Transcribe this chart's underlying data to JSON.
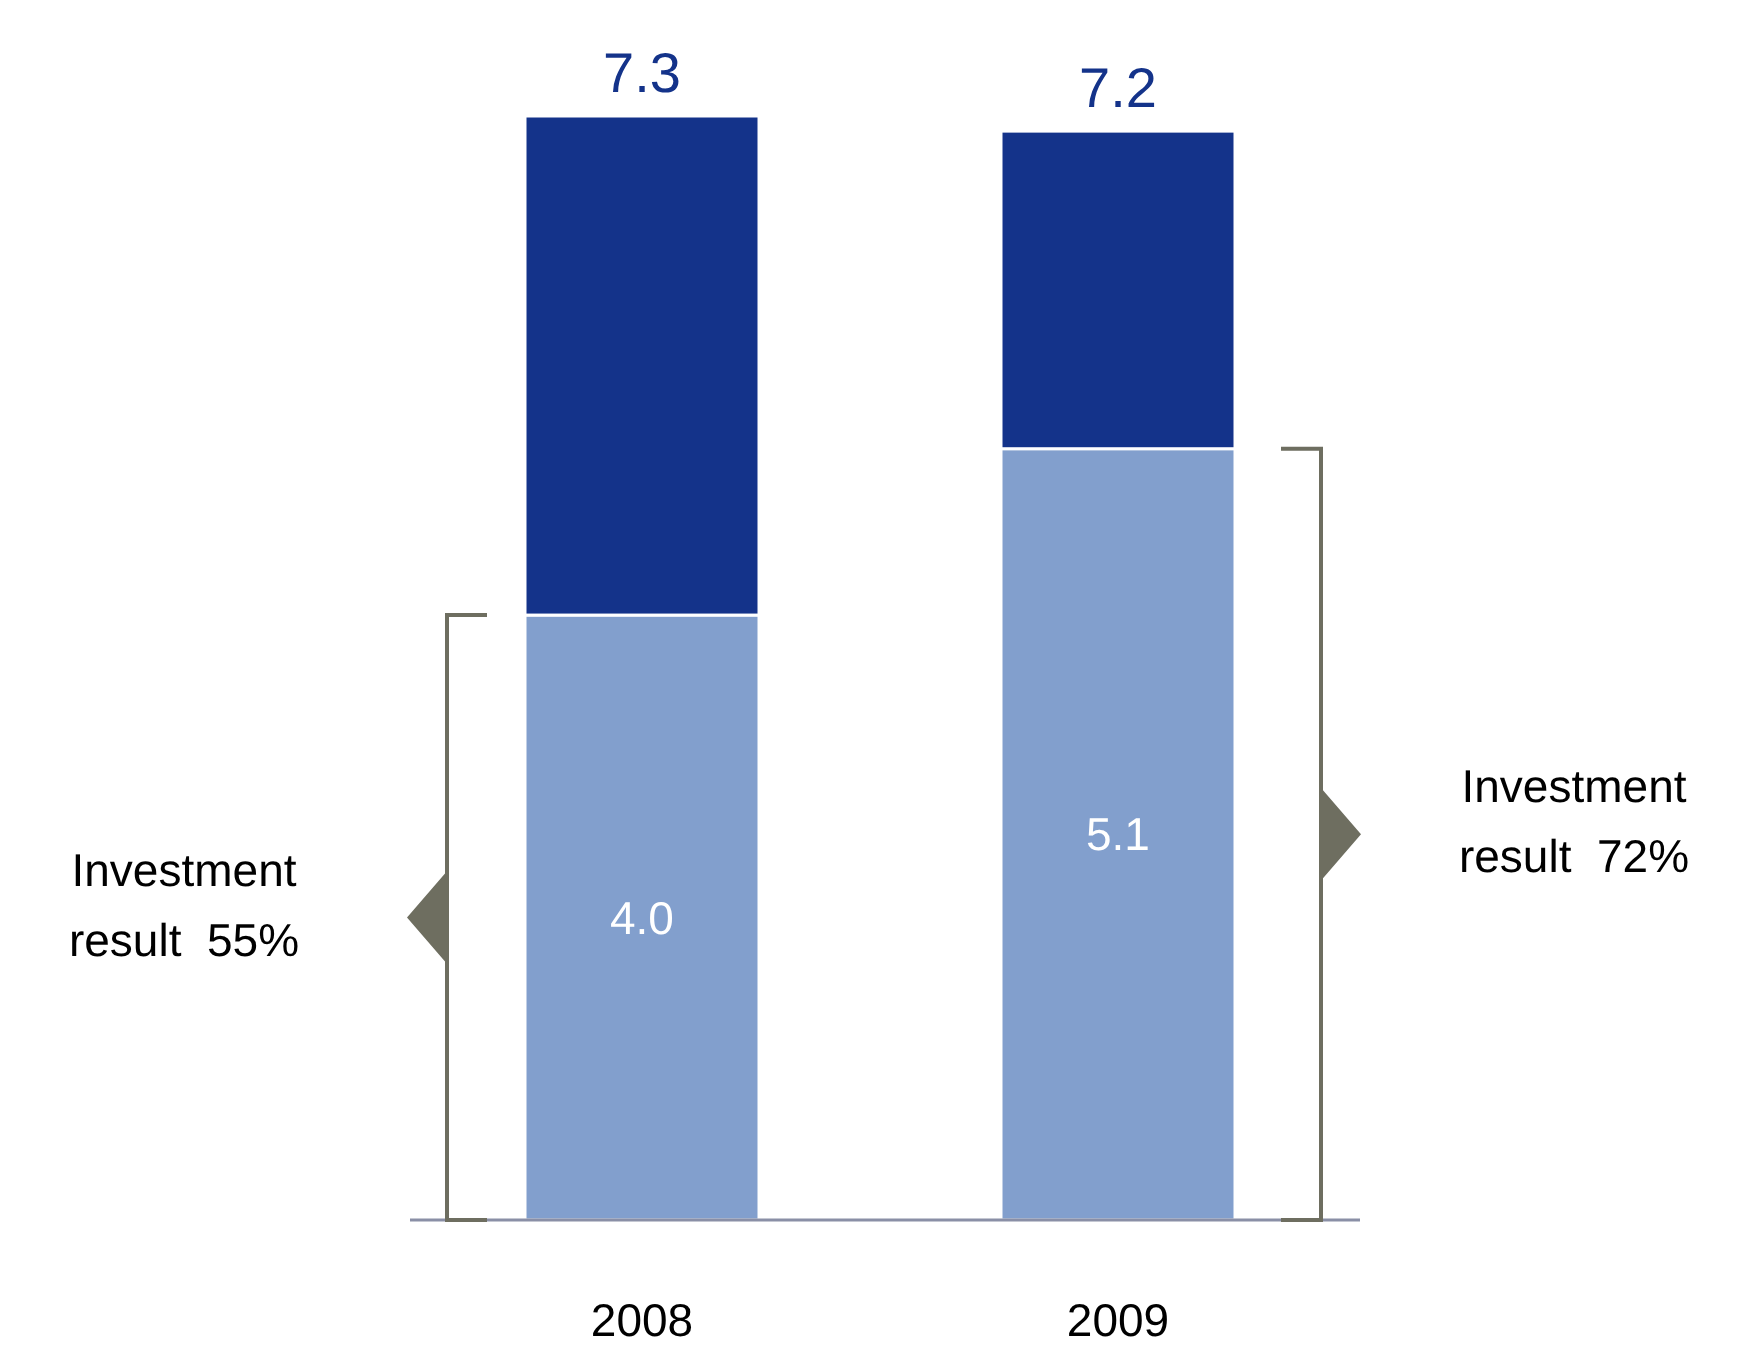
{
  "chart_data": {
    "type": "bar",
    "stacked": true,
    "categories": [
      "2008",
      "2009"
    ],
    "series": [
      {
        "color": "#829fcd",
        "values": [
          4.0,
          5.1
        ],
        "value_labels": [
          "4.0",
          "5.1"
        ]
      },
      {
        "color": "#14338a",
        "values": [
          3.3,
          2.1
        ],
        "value_labels": [
          null,
          null
        ]
      }
    ],
    "totals": [
      "7.3",
      "7.2"
    ],
    "annotations": [
      "Investment result 55%",
      "Investment result 72%"
    ]
  }
}
